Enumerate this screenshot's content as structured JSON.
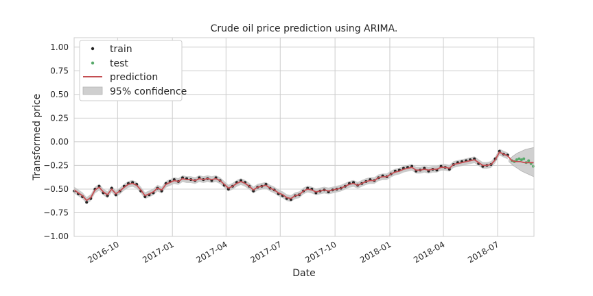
{
  "chart_data": {
    "type": "line",
    "title": "Crude oil price prediction using ARIMA.",
    "xlabel": "Date",
    "ylabel": "Transformed price",
    "xlim": [
      "2016-07-20",
      "2018-08-31"
    ],
    "ylim": [
      -1.0,
      1.1
    ],
    "y_ticks": [
      "1.00",
      "0.75",
      "0.50",
      "0.25",
      "0.00",
      "−0.25",
      "−0.50",
      "−0.75",
      "−1.00"
    ],
    "y_tick_values": [
      1.0,
      0.75,
      0.5,
      0.25,
      0.0,
      -0.25,
      -0.5,
      -0.75,
      -1.0
    ],
    "x_ticks": [
      "2016-10",
      "2017-01",
      "2017-04",
      "2017-07",
      "2017-10",
      "2018-01",
      "2018-04",
      "2018-07"
    ],
    "x_tick_dates": [
      "2016-10-01",
      "2017-01-01",
      "2017-04-01",
      "2017-07-01",
      "2017-10-01",
      "2018-01-01",
      "2018-04-01",
      "2018-07-01"
    ],
    "grid": true,
    "legend_position": "top-left",
    "colors": {
      "train": "#222222",
      "test": "#55a868",
      "prediction": "#c44e52",
      "confidence": "#b0b0b0",
      "grid": "#cccccc"
    },
    "legend": [
      {
        "key": "train",
        "label": "train",
        "marker": "dot"
      },
      {
        "key": "test",
        "label": "test",
        "marker": "dot"
      },
      {
        "key": "prediction",
        "label": "prediction",
        "marker": "line"
      },
      {
        "key": "confidence",
        "label": "95% confidence",
        "marker": "patch"
      }
    ],
    "series": [
      {
        "name": "train",
        "x": [
          "2016-07-20",
          "2016-07-27",
          "2016-08-03",
          "2016-08-10",
          "2016-08-17",
          "2016-08-24",
          "2016-08-31",
          "2016-09-07",
          "2016-09-14",
          "2016-09-21",
          "2016-09-28",
          "2016-10-05",
          "2016-10-12",
          "2016-10-19",
          "2016-10-26",
          "2016-11-02",
          "2016-11-09",
          "2016-11-16",
          "2016-11-23",
          "2016-11-30",
          "2016-12-07",
          "2016-12-14",
          "2016-12-21",
          "2016-12-28",
          "2017-01-04",
          "2017-01-11",
          "2017-01-18",
          "2017-01-25",
          "2017-02-01",
          "2017-02-08",
          "2017-02-15",
          "2017-02-22",
          "2017-03-01",
          "2017-03-08",
          "2017-03-15",
          "2017-03-22",
          "2017-03-29",
          "2017-04-05",
          "2017-04-12",
          "2017-04-19",
          "2017-04-26",
          "2017-05-03",
          "2017-05-10",
          "2017-05-17",
          "2017-05-24",
          "2017-05-31",
          "2017-06-07",
          "2017-06-14",
          "2017-06-21",
          "2017-06-28",
          "2017-07-05",
          "2017-07-12",
          "2017-07-19",
          "2017-07-26",
          "2017-08-02",
          "2017-08-09",
          "2017-08-16",
          "2017-08-23",
          "2017-08-30",
          "2017-09-06",
          "2017-09-13",
          "2017-09-20",
          "2017-09-27",
          "2017-10-04",
          "2017-10-11",
          "2017-10-18",
          "2017-10-25",
          "2017-11-01",
          "2017-11-08",
          "2017-11-15",
          "2017-11-22",
          "2017-11-29",
          "2017-12-06",
          "2017-12-13",
          "2017-12-20",
          "2017-12-27",
          "2018-01-03",
          "2018-01-10",
          "2018-01-17",
          "2018-01-24",
          "2018-01-31",
          "2018-02-07",
          "2018-02-14",
          "2018-02-21",
          "2018-02-28",
          "2018-03-07",
          "2018-03-14",
          "2018-03-21",
          "2018-03-28",
          "2018-04-04",
          "2018-04-11",
          "2018-04-18",
          "2018-04-25",
          "2018-05-02",
          "2018-05-09",
          "2018-05-16",
          "2018-05-23",
          "2018-05-30",
          "2018-06-06",
          "2018-06-13",
          "2018-06-20",
          "2018-06-27",
          "2018-07-04",
          "2018-07-11",
          "2018-07-18"
        ],
        "values": [
          -0.52,
          -0.55,
          -0.58,
          -0.64,
          -0.6,
          -0.5,
          -0.47,
          -0.54,
          -0.57,
          -0.49,
          -0.56,
          -0.52,
          -0.47,
          -0.44,
          -0.43,
          -0.45,
          -0.52,
          -0.58,
          -0.56,
          -0.54,
          -0.49,
          -0.52,
          -0.44,
          -0.42,
          -0.4,
          -0.42,
          -0.38,
          -0.39,
          -0.4,
          -0.41,
          -0.38,
          -0.4,
          -0.39,
          -0.41,
          -0.38,
          -0.41,
          -0.46,
          -0.5,
          -0.47,
          -0.43,
          -0.41,
          -0.43,
          -0.47,
          -0.52,
          -0.48,
          -0.47,
          -0.45,
          -0.49,
          -0.51,
          -0.55,
          -0.57,
          -0.6,
          -0.61,
          -0.57,
          -0.56,
          -0.52,
          -0.49,
          -0.5,
          -0.54,
          -0.52,
          -0.51,
          -0.53,
          -0.51,
          -0.5,
          -0.49,
          -0.47,
          -0.44,
          -0.43,
          -0.46,
          -0.44,
          -0.42,
          -0.4,
          -0.41,
          -0.38,
          -0.36,
          -0.37,
          -0.34,
          -0.31,
          -0.3,
          -0.28,
          -0.27,
          -0.26,
          -0.31,
          -0.3,
          -0.28,
          -0.31,
          -0.29,
          -0.3,
          -0.26,
          -0.27,
          -0.29,
          -0.24,
          -0.22,
          -0.21,
          -0.2,
          -0.19,
          -0.18,
          -0.23,
          -0.26,
          -0.25,
          -0.24,
          -0.18,
          -0.1,
          -0.13,
          -0.14
        ]
      },
      {
        "name": "test",
        "x": [
          "2018-07-25",
          "2018-07-29",
          "2018-08-02",
          "2018-08-06",
          "2018-08-10",
          "2018-08-14",
          "2018-08-18",
          "2018-08-22",
          "2018-08-26",
          "2018-08-30"
        ],
        "values": [
          -0.2,
          -0.21,
          -0.19,
          -0.18,
          -0.19,
          -0.18,
          -0.22,
          -0.2,
          -0.23,
          -0.26
        ]
      },
      {
        "name": "prediction",
        "x": [
          "2016-07-20",
          "2016-07-27",
          "2016-08-03",
          "2016-08-10",
          "2016-08-17",
          "2016-08-24",
          "2016-08-31",
          "2016-09-07",
          "2016-09-14",
          "2016-09-21",
          "2016-09-28",
          "2016-10-05",
          "2016-10-12",
          "2016-10-19",
          "2016-10-26",
          "2016-11-02",
          "2016-11-09",
          "2016-11-16",
          "2016-11-23",
          "2016-11-30",
          "2016-12-07",
          "2016-12-14",
          "2016-12-21",
          "2016-12-28",
          "2017-01-04",
          "2017-01-11",
          "2017-01-18",
          "2017-01-25",
          "2017-02-01",
          "2017-02-08",
          "2017-02-15",
          "2017-02-22",
          "2017-03-01",
          "2017-03-08",
          "2017-03-15",
          "2017-03-22",
          "2017-03-29",
          "2017-04-05",
          "2017-04-12",
          "2017-04-19",
          "2017-04-26",
          "2017-05-03",
          "2017-05-10",
          "2017-05-17",
          "2017-05-24",
          "2017-05-31",
          "2017-06-07",
          "2017-06-14",
          "2017-06-21",
          "2017-06-28",
          "2017-07-05",
          "2017-07-12",
          "2017-07-19",
          "2017-07-26",
          "2017-08-02",
          "2017-08-09",
          "2017-08-16",
          "2017-08-23",
          "2017-08-30",
          "2017-09-06",
          "2017-09-13",
          "2017-09-20",
          "2017-09-27",
          "2017-10-04",
          "2017-10-11",
          "2017-10-18",
          "2017-10-25",
          "2017-11-01",
          "2017-11-08",
          "2017-11-15",
          "2017-11-22",
          "2017-11-29",
          "2017-12-06",
          "2017-12-13",
          "2017-12-20",
          "2017-12-27",
          "2018-01-03",
          "2018-01-10",
          "2018-01-17",
          "2018-01-24",
          "2018-01-31",
          "2018-02-07",
          "2018-02-14",
          "2018-02-21",
          "2018-02-28",
          "2018-03-07",
          "2018-03-14",
          "2018-03-21",
          "2018-03-28",
          "2018-04-04",
          "2018-04-11",
          "2018-04-18",
          "2018-04-25",
          "2018-05-02",
          "2018-05-09",
          "2018-05-16",
          "2018-05-23",
          "2018-05-30",
          "2018-06-06",
          "2018-06-13",
          "2018-06-20",
          "2018-06-27",
          "2018-07-04",
          "2018-07-11",
          "2018-07-18",
          "2018-07-25",
          "2018-08-01",
          "2018-08-08",
          "2018-08-15",
          "2018-08-22",
          "2018-08-31"
        ],
        "values": [
          -0.51,
          -0.54,
          -0.57,
          -0.62,
          -0.59,
          -0.51,
          -0.48,
          -0.53,
          -0.56,
          -0.5,
          -0.55,
          -0.52,
          -0.48,
          -0.45,
          -0.44,
          -0.46,
          -0.51,
          -0.57,
          -0.55,
          -0.53,
          -0.49,
          -0.51,
          -0.45,
          -0.43,
          -0.41,
          -0.42,
          -0.39,
          -0.4,
          -0.4,
          -0.41,
          -0.39,
          -0.4,
          -0.39,
          -0.4,
          -0.39,
          -0.41,
          -0.45,
          -0.49,
          -0.47,
          -0.44,
          -0.42,
          -0.44,
          -0.47,
          -0.51,
          -0.48,
          -0.47,
          -0.46,
          -0.49,
          -0.51,
          -0.54,
          -0.56,
          -0.59,
          -0.6,
          -0.57,
          -0.56,
          -0.52,
          -0.5,
          -0.51,
          -0.53,
          -0.52,
          -0.51,
          -0.52,
          -0.51,
          -0.5,
          -0.49,
          -0.47,
          -0.45,
          -0.44,
          -0.46,
          -0.44,
          -0.42,
          -0.41,
          -0.41,
          -0.38,
          -0.37,
          -0.37,
          -0.34,
          -0.32,
          -0.31,
          -0.29,
          -0.28,
          -0.27,
          -0.3,
          -0.3,
          -0.29,
          -0.3,
          -0.29,
          -0.29,
          -0.27,
          -0.27,
          -0.28,
          -0.24,
          -0.23,
          -0.22,
          -0.21,
          -0.2,
          -0.19,
          -0.22,
          -0.25,
          -0.25,
          -0.24,
          -0.19,
          -0.11,
          -0.13,
          -0.15,
          -0.2,
          -0.21,
          -0.21,
          -0.22,
          -0.22,
          -0.22
        ]
      },
      {
        "name": "95% confidence",
        "forecast_start": "2018-07-20",
        "x": [
          "2018-07-20",
          "2018-07-27",
          "2018-08-03",
          "2018-08-10",
          "2018-08-17",
          "2018-08-24",
          "2018-08-31"
        ],
        "lower": [
          -0.21,
          -0.25,
          -0.28,
          -0.31,
          -0.33,
          -0.35,
          -0.37
        ],
        "upper": [
          -0.19,
          -0.15,
          -0.12,
          -0.1,
          -0.08,
          -0.07,
          -0.06
        ],
        "in_sample_band_width": 0.035
      }
    ]
  }
}
